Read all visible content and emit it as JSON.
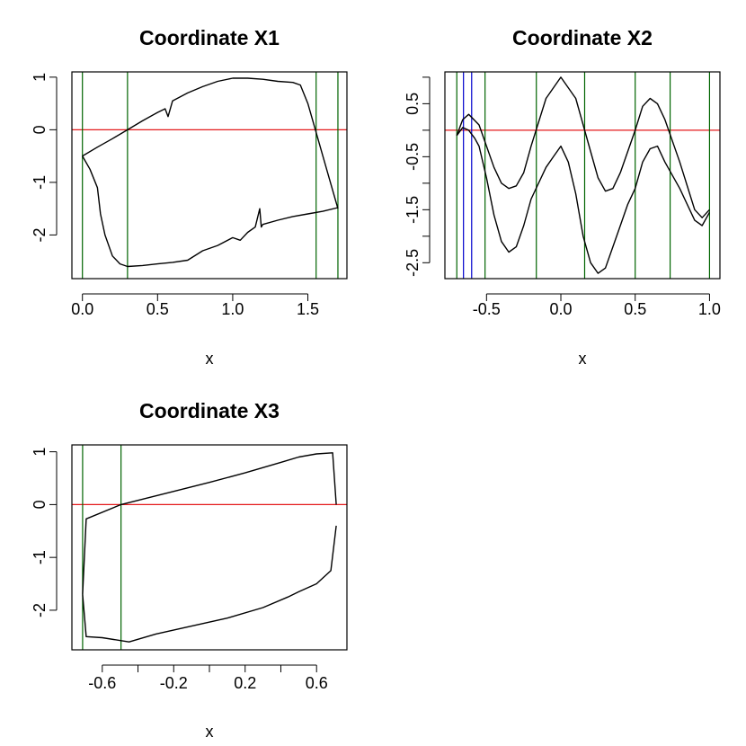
{
  "chart_data": [
    {
      "type": "line",
      "title": "Coordinate X1",
      "xlabel": "x",
      "ylabel": "",
      "xlim": [
        -0.07,
        1.76
      ],
      "ylim": [
        -2.83,
        1.1
      ],
      "xticks": [
        0.0,
        0.5,
        1.0,
        1.5
      ],
      "xtick_labels": [
        "0.0",
        "0.5",
        "1.0",
        "1.5"
      ],
      "yticks": [
        -2,
        -1,
        0,
        1
      ],
      "ytick_labels": [
        "-2",
        "-1",
        "0",
        "1"
      ],
      "hlines": [
        {
          "y": 0,
          "color": "#e41a1c"
        }
      ],
      "vlines": [
        {
          "x": 0.0,
          "color": "#006400"
        },
        {
          "x": 0.3,
          "color": "#006400"
        },
        {
          "x": 1.555,
          "color": "#006400"
        },
        {
          "x": 1.7,
          "color": "#006400"
        }
      ],
      "series": [
        {
          "color": "#000000",
          "x": [
            0.0,
            0.1,
            0.2,
            0.3,
            0.4,
            0.5,
            0.55,
            0.57,
            0.6,
            0.7,
            0.8,
            0.9,
            1.0,
            1.1,
            1.2,
            1.3,
            1.4,
            1.45,
            1.5,
            1.55,
            1.6,
            1.65,
            1.7
          ],
          "y": [
            -0.5,
            -0.33,
            -0.17,
            0.0,
            0.17,
            0.33,
            0.4,
            0.25,
            0.55,
            0.7,
            0.82,
            0.92,
            0.98,
            0.98,
            0.96,
            0.92,
            0.9,
            0.85,
            0.5,
            0.0,
            -0.5,
            -1.0,
            -1.5
          ]
        },
        {
          "color": "#000000",
          "x": [
            0.0,
            0.05,
            0.1,
            0.12,
            0.15,
            0.2,
            0.25,
            0.3,
            0.4,
            0.5,
            0.6,
            0.7,
            0.8,
            0.9,
            1.0,
            1.05,
            1.1,
            1.15,
            1.18,
            1.19,
            1.2,
            1.3,
            1.4,
            1.5,
            1.6,
            1.7
          ],
          "y": [
            -0.5,
            -0.75,
            -1.1,
            -1.6,
            -2.0,
            -2.4,
            -2.55,
            -2.6,
            -2.58,
            -2.55,
            -2.52,
            -2.48,
            -2.3,
            -2.2,
            -2.05,
            -2.1,
            -1.95,
            -1.85,
            -1.5,
            -1.85,
            -1.8,
            -1.72,
            -1.65,
            -1.6,
            -1.55,
            -1.48
          ]
        }
      ]
    },
    {
      "type": "line",
      "title": "Coordinate X2",
      "xlabel": "x",
      "ylabel": "",
      "xlim": [
        -0.78,
        1.07
      ],
      "ylim": [
        -2.8,
        1.1
      ],
      "xticks": [
        -0.5,
        0.0,
        0.5,
        1.0
      ],
      "xtick_labels": [
        "-0.5",
        "0.0",
        "0.5",
        "1.0"
      ],
      "yticks": [
        -2.5,
        -1.5,
        -0.5,
        0.5
      ],
      "ytick_labels": [
        "-2.5",
        "-1.5",
        "-0.5",
        "0.5"
      ],
      "yticks_minor": [
        -2,
        -1,
        0,
        1
      ],
      "hlines": [
        {
          "y": 0,
          "color": "#e41a1c"
        }
      ],
      "vlines": [
        {
          "x": -0.7,
          "color": "#006400"
        },
        {
          "x": -0.51,
          "color": "#006400"
        },
        {
          "x": -0.165,
          "color": "#006400"
        },
        {
          "x": 0.16,
          "color": "#006400"
        },
        {
          "x": 0.5,
          "color": "#006400"
        },
        {
          "x": 0.735,
          "color": "#006400"
        },
        {
          "x": 1.0,
          "color": "#006400"
        },
        {
          "x": -0.655,
          "color": "#0000cd"
        },
        {
          "x": -0.6,
          "color": "#0000cd"
        }
      ],
      "series": [
        {
          "color": "#000000",
          "x": [
            -0.7,
            -0.66,
            -0.62,
            -0.55,
            -0.5,
            -0.45,
            -0.4,
            -0.35,
            -0.3,
            -0.25,
            -0.2,
            -0.1,
            0.0,
            0.1,
            0.2,
            0.25,
            0.3,
            0.35,
            0.4,
            0.5,
            0.55,
            0.6,
            0.65,
            0.7,
            0.8,
            0.9,
            0.95,
            1.0
          ],
          "y": [
            -0.1,
            0.2,
            0.3,
            0.1,
            -0.3,
            -0.7,
            -1.0,
            -1.1,
            -1.05,
            -0.8,
            -0.3,
            0.6,
            1.0,
            0.6,
            -0.4,
            -0.9,
            -1.15,
            -1.1,
            -0.8,
            0.0,
            0.45,
            0.6,
            0.5,
            0.2,
            -0.6,
            -1.5,
            -1.65,
            -1.5
          ]
        },
        {
          "color": "#000000",
          "x": [
            -0.7,
            -0.66,
            -0.62,
            -0.58,
            -0.55,
            -0.5,
            -0.45,
            -0.4,
            -0.35,
            -0.3,
            -0.25,
            -0.2,
            -0.1,
            -0.05,
            0.0,
            0.05,
            0.1,
            0.15,
            0.2,
            0.25,
            0.3,
            0.35,
            0.4,
            0.45,
            0.5,
            0.55,
            0.6,
            0.65,
            0.7,
            0.8,
            0.9,
            0.95,
            1.0
          ],
          "y": [
            -0.1,
            0.05,
            0.0,
            -0.15,
            -0.3,
            -0.9,
            -1.6,
            -2.1,
            -2.3,
            -2.2,
            -1.8,
            -1.3,
            -0.7,
            -0.5,
            -0.3,
            -0.6,
            -1.2,
            -2.0,
            -2.5,
            -2.7,
            -2.6,
            -2.2,
            -1.8,
            -1.4,
            -1.1,
            -0.6,
            -0.35,
            -0.3,
            -0.6,
            -1.1,
            -1.7,
            -1.8,
            -1.55
          ]
        }
      ]
    },
    {
      "type": "line",
      "title": "Coordinate X3",
      "xlabel": "x",
      "ylabel": "",
      "xlim": [
        -0.77,
        0.77
      ],
      "ylim": [
        -2.75,
        1.13
      ],
      "xticks": [
        -0.6,
        -0.2,
        0.2,
        0.6
      ],
      "xtick_labels": [
        "-0.6",
        "-0.2",
        "0.2",
        "0.6"
      ],
      "xticks_minor": [
        -0.4,
        0.0,
        0.4
      ],
      "yticks": [
        -2,
        -1,
        0,
        1
      ],
      "ytick_labels": [
        "-2",
        "-1",
        "0",
        "1"
      ],
      "hlines": [
        {
          "y": 0,
          "color": "#e41a1c"
        }
      ],
      "vlines": [
        {
          "x": -0.71,
          "color": "#006400"
        },
        {
          "x": -0.495,
          "color": "#006400"
        }
      ],
      "series": [
        {
          "color": "#000000",
          "x": [
            -0.71,
            -0.69,
            -0.495,
            -0.4,
            -0.2,
            0.0,
            0.2,
            0.4,
            0.5,
            0.6,
            0.69,
            0.71
          ],
          "y": [
            -1.7,
            -0.27,
            0.0,
            0.08,
            0.25,
            0.42,
            0.6,
            0.8,
            0.9,
            0.96,
            0.98,
            0.0
          ]
        },
        {
          "color": "#000000",
          "x": [
            -0.71,
            -0.69,
            -0.6,
            -0.45,
            -0.3,
            -0.1,
            0.1,
            0.3,
            0.44,
            0.5,
            0.6,
            0.68,
            0.71
          ],
          "y": [
            -1.7,
            -2.5,
            -2.52,
            -2.6,
            -2.45,
            -2.3,
            -2.15,
            -1.95,
            -1.75,
            -1.65,
            -1.5,
            -1.25,
            -0.4
          ]
        }
      ]
    }
  ]
}
